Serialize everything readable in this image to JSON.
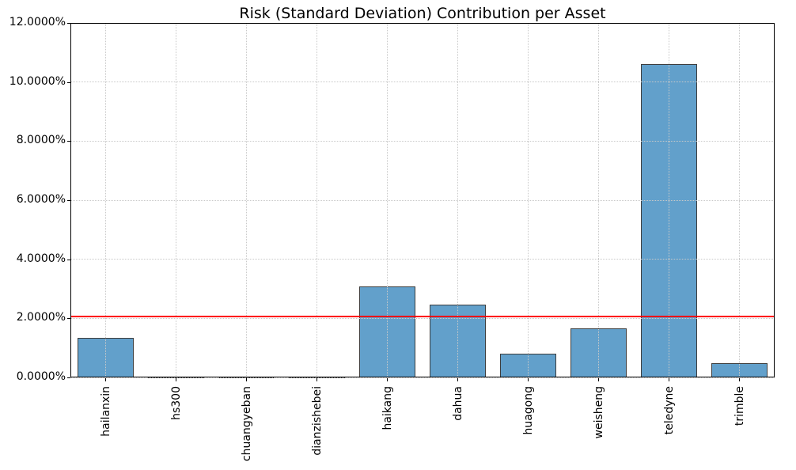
{
  "chart_data": {
    "type": "bar",
    "title": "Risk (Standard Deviation) Contribution per Asset",
    "categories": [
      "hailanxin",
      "hs300",
      "chuangyeban",
      "dianzishebei",
      "haikang",
      "dahua",
      "huagong",
      "weisheng",
      "teledyne",
      "trimble"
    ],
    "values": [
      1.33,
      0.02,
      0.02,
      0.02,
      3.07,
      2.46,
      0.8,
      1.66,
      10.61,
      0.47
    ],
    "value_unit": "percent",
    "xlabel": "",
    "ylabel": "",
    "ylim": [
      0,
      12
    ],
    "yticks": [
      0,
      2,
      4,
      6,
      8,
      10,
      12
    ],
    "ytick_labels": [
      "0.0000%",
      "2.0000%",
      "4.0000%",
      "6.0000%",
      "8.0000%",
      "10.0000%",
      "12.0000%"
    ],
    "x_tick_label_rotation": 90,
    "grid": "both, dotted, drawn above bars",
    "legend": null,
    "threshold_line": {
      "value": 2.05,
      "color": "#ff0000"
    },
    "colors": {
      "bar_fill": "#62a0cb",
      "bar_edge": "#3d3d3d",
      "grid": "#c9c9c9",
      "axes": "#000000",
      "background": "#ffffff"
    }
  }
}
